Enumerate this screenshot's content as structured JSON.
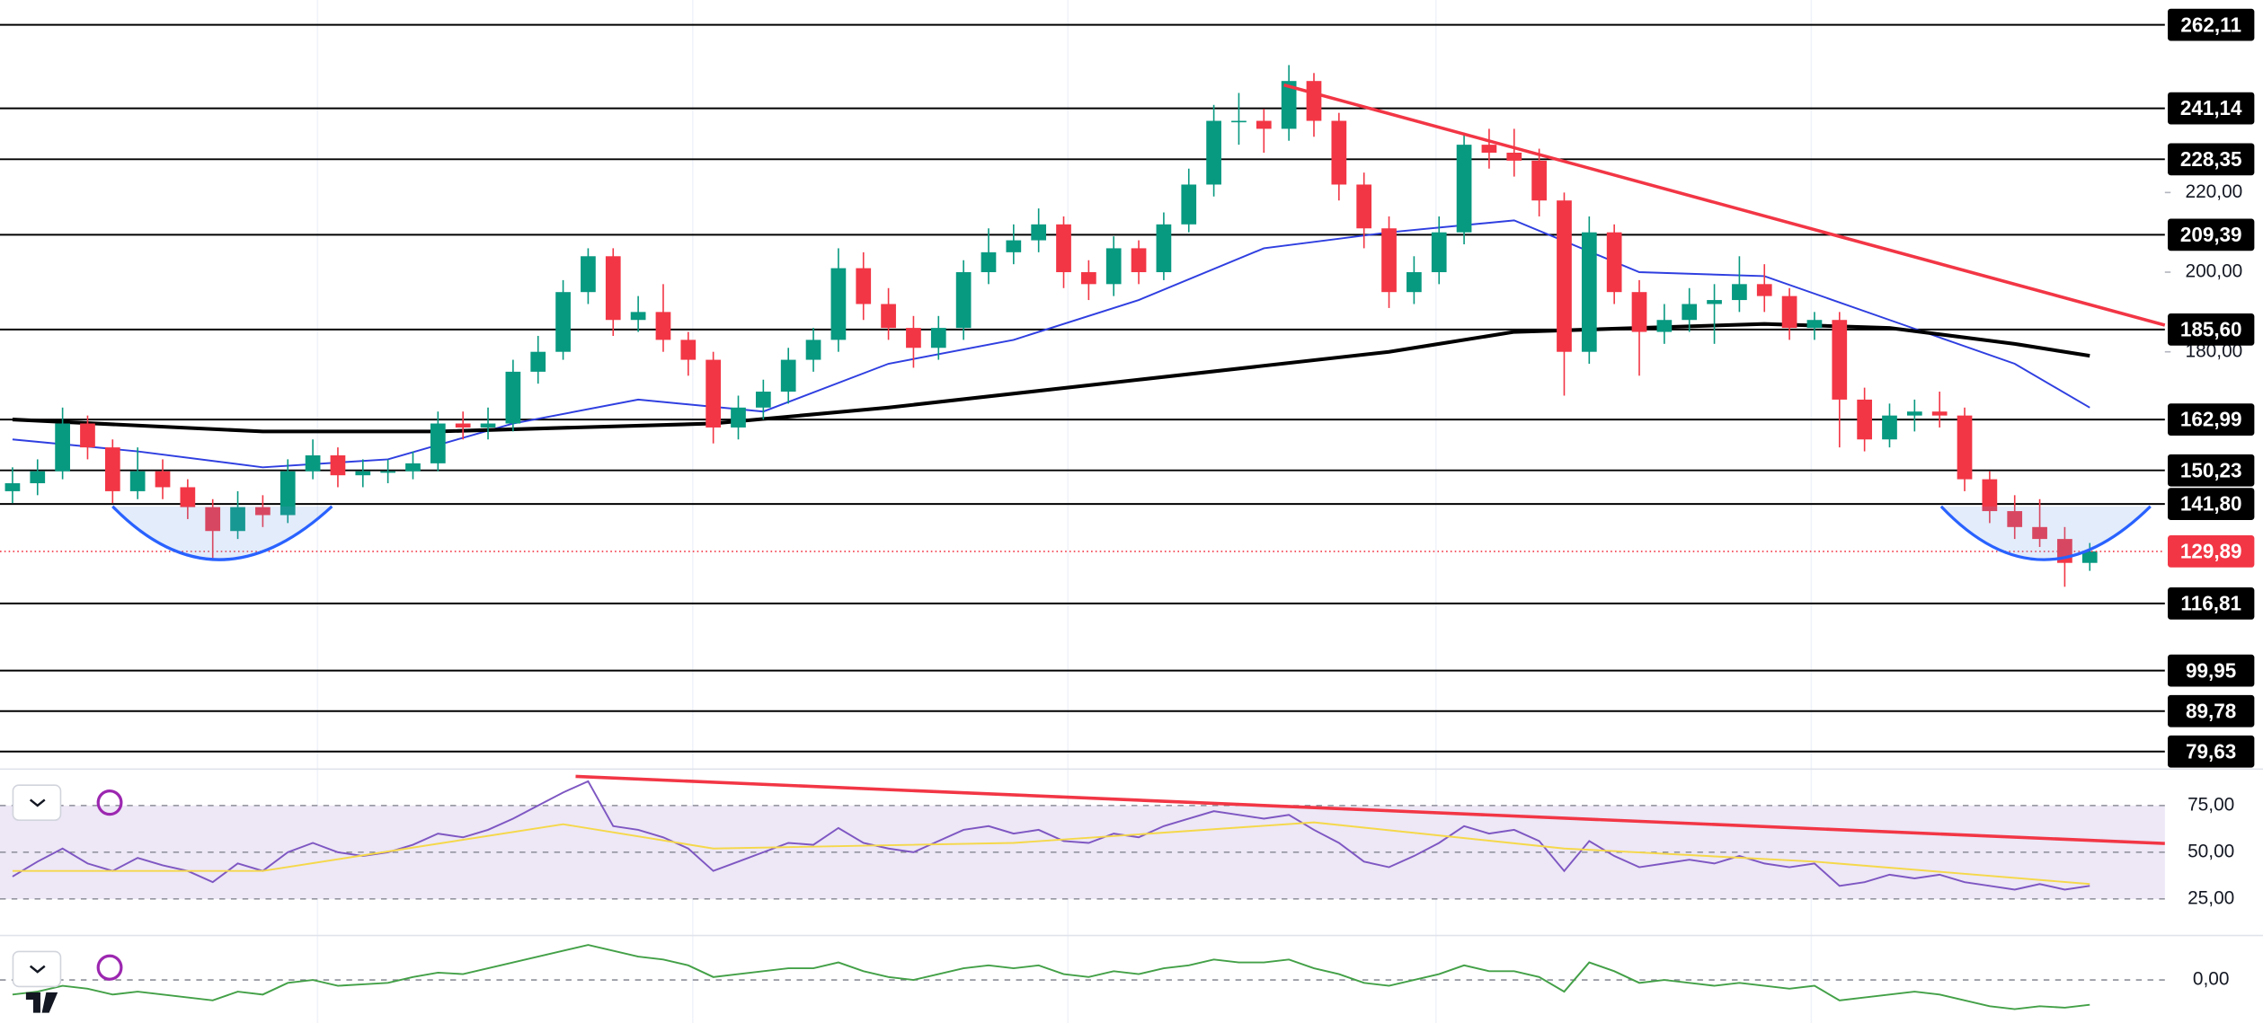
{
  "chart_data": [
    {
      "type": "candlestick",
      "xlim": [
        -0.5,
        86
      ],
      "ylim": [
        75.96,
        268.34
      ],
      "up_color": "#089981",
      "down_color": "#f23645",
      "candles": [
        [
          145,
          151,
          142,
          147
        ],
        [
          147,
          153,
          144,
          150
        ],
        [
          150,
          166,
          148,
          162
        ],
        [
          162,
          164,
          153,
          156
        ],
        [
          156,
          158,
          142,
          145
        ],
        [
          145,
          156,
          143,
          150
        ],
        [
          150,
          153,
          143,
          146
        ],
        [
          146,
          148,
          138,
          141
        ],
        [
          141,
          143,
          128,
          135
        ],
        [
          135,
          145,
          133,
          141
        ],
        [
          141,
          144,
          136,
          139
        ],
        [
          139,
          153,
          137,
          150
        ],
        [
          150,
          158,
          148,
          154
        ],
        [
          154,
          156,
          146,
          149
        ],
        [
          149,
          153,
          146,
          150
        ],
        [
          150,
          153,
          147,
          150
        ],
        [
          150,
          155,
          148,
          152
        ],
        [
          152,
          165,
          150,
          162
        ],
        [
          162,
          165,
          158,
          161
        ],
        [
          161,
          166,
          158,
          162
        ],
        [
          162,
          178,
          160,
          175
        ],
        [
          175,
          184,
          172,
          180
        ],
        [
          180,
          198,
          178,
          195
        ],
        [
          195,
          206,
          192,
          204
        ],
        [
          204,
          206,
          184,
          188
        ],
        [
          188,
          194,
          185,
          190
        ],
        [
          190,
          197,
          180,
          183
        ],
        [
          183,
          185,
          174,
          178
        ],
        [
          178,
          180,
          157,
          161
        ],
        [
          161,
          169,
          158,
          166
        ],
        [
          166,
          173,
          163,
          170
        ],
        [
          170,
          181,
          167,
          178
        ],
        [
          178,
          186,
          175,
          183
        ],
        [
          183,
          206,
          180,
          201
        ],
        [
          201,
          205,
          188,
          192
        ],
        [
          192,
          196,
          183,
          186
        ],
        [
          186,
          189,
          176,
          181
        ],
        [
          181,
          189,
          178,
          186
        ],
        [
          186,
          203,
          183,
          200
        ],
        [
          200,
          211,
          197,
          205
        ],
        [
          205,
          212,
          202,
          208
        ],
        [
          208,
          216,
          205,
          212
        ],
        [
          212,
          214,
          196,
          200
        ],
        [
          200,
          203,
          193,
          197
        ],
        [
          197,
          209,
          194,
          206
        ],
        [
          206,
          208,
          197,
          200
        ],
        [
          200,
          215,
          198,
          212
        ],
        [
          212,
          226,
          210,
          222
        ],
        [
          222,
          242,
          219,
          238
        ],
        [
          238,
          245,
          232,
          238
        ],
        [
          238,
          241,
          230,
          236
        ],
        [
          236,
          252,
          233,
          248
        ],
        [
          248,
          250,
          234,
          238
        ],
        [
          238,
          240,
          218,
          222
        ],
        [
          222,
          225,
          206,
          211
        ],
        [
          211,
          214,
          191,
          195
        ],
        [
          195,
          204,
          192,
          200
        ],
        [
          200,
          214,
          197,
          210
        ],
        [
          210,
          235,
          207,
          232
        ],
        [
          232,
          236,
          226,
          230
        ],
        [
          230,
          236,
          224,
          228
        ],
        [
          228,
          231,
          214,
          218
        ],
        [
          218,
          220,
          169,
          180
        ],
        [
          180,
          214,
          177,
          210
        ],
        [
          210,
          212,
          192,
          195
        ],
        [
          195,
          198,
          174,
          185
        ],
        [
          185,
          192,
          182,
          188
        ],
        [
          188,
          196,
          185,
          192
        ],
        [
          192,
          197,
          182,
          193
        ],
        [
          193,
          204,
          190,
          197
        ],
        [
          197,
          202,
          190,
          194
        ],
        [
          194,
          196,
          183,
          186
        ],
        [
          186,
          190,
          183,
          188
        ],
        [
          188,
          190,
          156,
          168
        ],
        [
          168,
          171,
          155,
          158
        ],
        [
          158,
          167,
          156,
          164
        ],
        [
          164,
          168,
          160,
          165
        ],
        [
          165,
          170,
          161,
          164
        ],
        [
          164,
          166,
          145,
          148
        ],
        [
          148,
          150,
          137,
          140
        ],
        [
          140,
          144,
          133,
          136
        ],
        [
          136,
          143,
          131,
          133
        ],
        [
          133,
          136,
          121,
          127
        ],
        [
          127,
          132,
          125,
          129.89
        ]
      ],
      "series": [
        {
          "color": "#2f3fe0",
          "x": [
            0,
            5,
            10,
            15,
            20,
            25,
            30,
            35,
            40,
            45,
            50,
            55,
            60,
            65,
            70,
            75,
            80,
            83
          ],
          "values": [
            158,
            155,
            151,
            153,
            162,
            168,
            165,
            177,
            183,
            193,
            206,
            210,
            213,
            200,
            199,
            188,
            177,
            166
          ]
        },
        {
          "color": "#000000",
          "x": [
            0,
            10,
            17,
            28,
            35,
            45,
            55,
            60,
            70,
            75,
            80,
            83
          ],
          "values": [
            163,
            160,
            160,
            162,
            166,
            173,
            180,
            185,
            187,
            186,
            182,
            179
          ]
        }
      ],
      "trend_line": {
        "color": "#f23645",
        "x": [
          50.8,
          86
        ],
        "values": [
          247,
          186.7
        ]
      },
      "levels": [
        {
          "value": 262.11,
          "label": "262,11"
        },
        {
          "value": 241.14,
          "label": "241,14"
        },
        {
          "value": 228.35,
          "label": "228,35"
        },
        {
          "value": 209.39,
          "label": "209,39"
        },
        {
          "value": 185.6,
          "label": "185,60"
        },
        {
          "value": 162.99,
          "label": "162,99"
        },
        {
          "value": 150.23,
          "label": "150,23"
        },
        {
          "value": 141.8,
          "label": "141,80"
        },
        {
          "value": 116.81,
          "label": "116,81"
        },
        {
          "value": 99.95,
          "label": "99,95"
        },
        {
          "value": 89.78,
          "label": "89,78"
        },
        {
          "value": 79.63,
          "label": "79,63"
        }
      ],
      "yticks": [
        {
          "value": 220,
          "label": "220,00"
        },
        {
          "value": 200,
          "label": "200,00"
        },
        {
          "value": 180,
          "label": "180,00"
        }
      ],
      "last_price": {
        "value": 129.89,
        "label": "129,89",
        "color": "#f23645"
      }
    },
    {
      "type": "line",
      "xlim": [
        -0.5,
        86
      ],
      "ylim": [
        6.25,
        93.75
      ],
      "yticks": [
        {
          "value": 75,
          "label": "75,00"
        },
        {
          "value": 50,
          "label": "50,00"
        },
        {
          "value": 25,
          "label": "25,00"
        }
      ],
      "band_color": "#ede7f6",
      "series": [
        {
          "color": "#7e57c2",
          "x": [
            0,
            1,
            2,
            3,
            4,
            5,
            6,
            7,
            8,
            9,
            10,
            11,
            12,
            13,
            14,
            15,
            16,
            17,
            18,
            19,
            20,
            21,
            22,
            23,
            24,
            25,
            26,
            27,
            28,
            29,
            30,
            31,
            32,
            33,
            34,
            35,
            36,
            37,
            38,
            39,
            40,
            41,
            42,
            43,
            44,
            45,
            46,
            47,
            48,
            49,
            50,
            51,
            52,
            53,
            54,
            55,
            56,
            57,
            58,
            59,
            60,
            61,
            62,
            63,
            64,
            65,
            66,
            67,
            68,
            69,
            70,
            71,
            72,
            73,
            74,
            75,
            76,
            77,
            78,
            79,
            80,
            81,
            82,
            83
          ],
          "values": [
            37,
            45,
            52,
            44,
            40,
            47,
            43,
            40,
            34,
            44,
            40,
            50,
            55,
            50,
            48,
            50,
            54,
            60,
            58,
            62,
            68,
            75,
            82,
            88,
            64,
            62,
            58,
            52,
            40,
            45,
            50,
            55,
            54,
            63,
            55,
            52,
            50,
            56,
            62,
            64,
            60,
            62,
            56,
            55,
            60,
            58,
            64,
            68,
            72,
            70,
            68,
            70,
            62,
            55,
            45,
            42,
            48,
            55,
            64,
            60,
            62,
            56,
            40,
            56,
            48,
            42,
            44,
            46,
            44,
            48,
            44,
            42,
            44,
            32,
            34,
            38,
            36,
            38,
            34,
            32,
            30,
            33,
            30,
            32
          ]
        },
        {
          "color": "#f5d84a",
          "x": [
            0,
            10,
            22,
            28,
            40,
            52,
            62,
            72,
            83
          ],
          "values": [
            40,
            40,
            65,
            52,
            55,
            66,
            52,
            45,
            33
          ]
        }
      ],
      "trend_line": {
        "color": "#f23645",
        "x": [
          22.5,
          86
        ],
        "values": [
          90.6,
          54.7
        ]
      }
    },
    {
      "type": "line",
      "xlim": [
        -0.5,
        86
      ],
      "ylim": [
        -29.5,
        29.5
      ],
      "yticks": [
        {
          "value": 0,
          "label": "0,00"
        }
      ],
      "series": [
        {
          "color": "#43a047",
          "x": [
            0,
            1,
            2,
            3,
            4,
            5,
            6,
            7,
            8,
            9,
            10,
            11,
            12,
            13,
            14,
            15,
            16,
            17,
            18,
            19,
            20,
            21,
            22,
            23,
            24,
            25,
            26,
            27,
            28,
            29,
            30,
            31,
            32,
            33,
            34,
            35,
            36,
            37,
            38,
            39,
            40,
            41,
            42,
            43,
            44,
            45,
            46,
            47,
            48,
            49,
            50,
            51,
            52,
            53,
            54,
            55,
            56,
            57,
            58,
            59,
            60,
            61,
            62,
            63,
            64,
            65,
            66,
            67,
            68,
            69,
            70,
            71,
            72,
            73,
            74,
            75,
            76,
            77,
            78,
            79,
            80,
            81,
            82,
            83
          ],
          "values": [
            -10,
            -8,
            -4,
            -6,
            -10,
            -8,
            -10,
            -12,
            -14,
            -8,
            -10,
            -2,
            0,
            -4,
            -3,
            -2,
            2,
            5,
            4,
            8,
            12,
            16,
            20,
            24,
            20,
            16,
            14,
            10,
            2,
            4,
            6,
            8,
            8,
            12,
            6,
            2,
            0,
            4,
            8,
            10,
            8,
            10,
            4,
            2,
            6,
            4,
            8,
            10,
            14,
            12,
            12,
            14,
            8,
            4,
            -2,
            -4,
            0,
            4,
            10,
            6,
            6,
            2,
            -8,
            12,
            6,
            -2,
            0,
            -2,
            -4,
            -2,
            -4,
            -6,
            -4,
            -14,
            -12,
            -10,
            -8,
            -10,
            -14,
            -18,
            -20,
            -18,
            -19,
            -17
          ]
        }
      ]
    }
  ]
}
